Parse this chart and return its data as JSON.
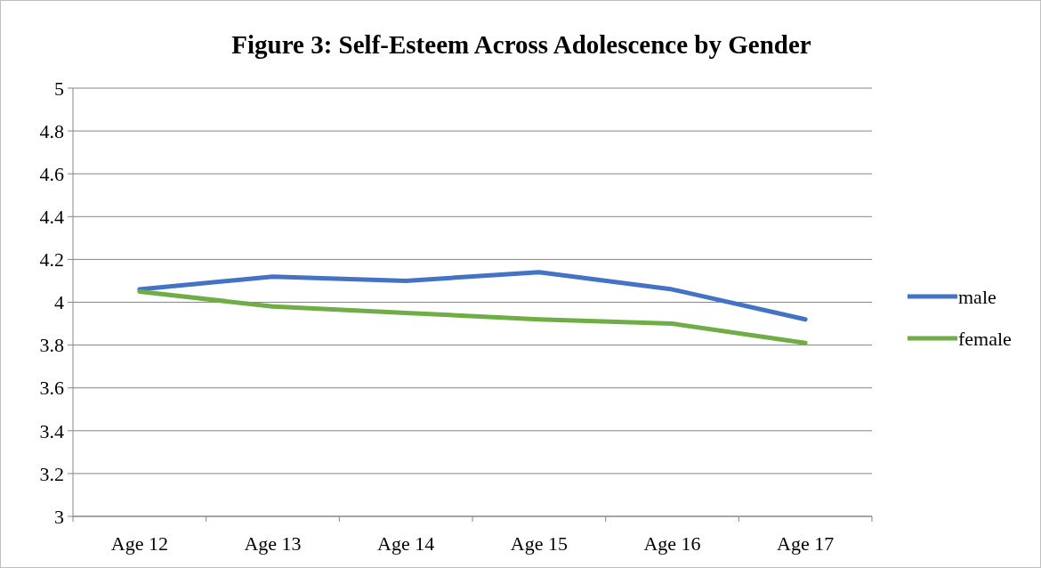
{
  "chart_data": {
    "type": "line",
    "title": "Figure 3: Self-Esteem Across Adolescence by Gender",
    "categories": [
      "Age 12",
      "Age 13",
      "Age 14",
      "Age 15",
      "Age 16",
      "Age 17"
    ],
    "series": [
      {
        "name": "male",
        "color": "#4472c4",
        "values": [
          4.06,
          4.12,
          4.1,
          4.14,
          4.06,
          3.92
        ]
      },
      {
        "name": "female",
        "color": "#70ad47",
        "values": [
          4.05,
          3.98,
          3.95,
          3.92,
          3.9,
          3.81
        ]
      }
    ],
    "ylim": [
      3,
      5
    ],
    "yticks": [
      3,
      3.2,
      3.4,
      3.6,
      3.8,
      4,
      4.2,
      4.4,
      4.6,
      4.8,
      5
    ],
    "grid": "y",
    "legend": "right",
    "marker": "none",
    "line_style": "solid"
  }
}
